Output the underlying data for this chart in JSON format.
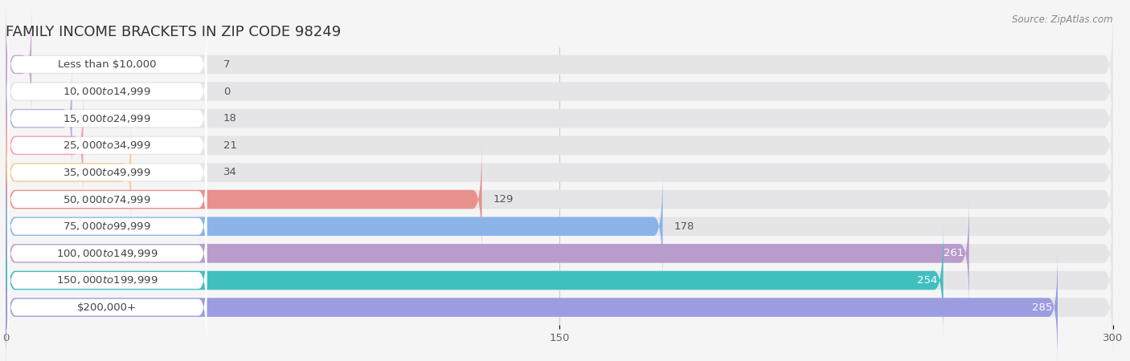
{
  "title": "FAMILY INCOME BRACKETS IN ZIP CODE 98249",
  "source": "Source: ZipAtlas.com",
  "categories": [
    "Less than $10,000",
    "$10,000 to $14,999",
    "$15,000 to $24,999",
    "$25,000 to $34,999",
    "$35,000 to $49,999",
    "$50,000 to $74,999",
    "$75,000 to $99,999",
    "$100,000 to $149,999",
    "$150,000 to $199,999",
    "$200,000+"
  ],
  "values": [
    7,
    0,
    18,
    21,
    34,
    129,
    178,
    261,
    254,
    285
  ],
  "bar_colors": [
    "#c9a8d4",
    "#7ecec4",
    "#b3b3e0",
    "#f4a0b0",
    "#f5c99a",
    "#e8908c",
    "#8ab4e8",
    "#b89ccc",
    "#40bfbf",
    "#9b9de0"
  ],
  "xlim": [
    0,
    300
  ],
  "xticks": [
    0,
    150,
    300
  ],
  "background_color": "#f5f5f5",
  "bar_background_color": "#e5e5e8",
  "title_fontsize": 13,
  "label_fontsize": 9.5,
  "value_fontsize": 9.5,
  "label_box_color": "#ffffff",
  "label_text_color": "#444444",
  "value_color_inside": "#ffffff",
  "value_color_outside": "#555555"
}
